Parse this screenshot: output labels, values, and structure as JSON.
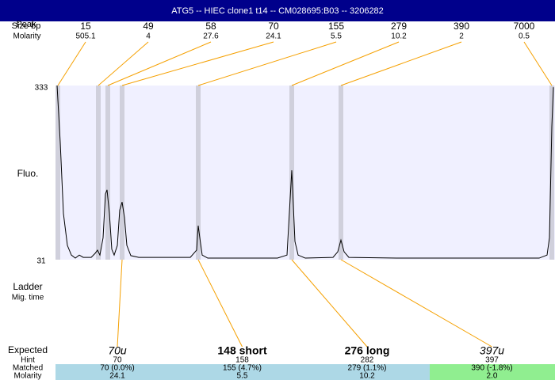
{
  "header": {
    "title": "ATG5 -- HIEC clone1 t14 -- CM028695:B03 -- 3206282"
  },
  "top": {
    "size_label": "Size bp",
    "peak_label": "Peak",
    "molarity_label": "Molarity",
    "peaks": [
      {
        "size": 15,
        "molarity": 505.1
      },
      {
        "size": 49,
        "molarity": 4
      },
      {
        "size": 58,
        "molarity": 27.6
      },
      {
        "size": 70,
        "molarity": 24.1
      },
      {
        "size": 155,
        "molarity": 5.5
      },
      {
        "size": 279,
        "molarity": 10.2
      },
      {
        "size": 390,
        "molarity": 2
      },
      {
        "size": 7000,
        "molarity": 0.5
      }
    ]
  },
  "chart_data": {
    "type": "line",
    "y_label": "Fluo.",
    "ylim": [
      31,
      333
    ],
    "yticks": [
      31,
      333
    ],
    "xlim": [
      0,
      630
    ],
    "peak_x": [
      3,
      54,
      66,
      84,
      180,
      298,
      360,
      626
    ],
    "series": [
      {
        "color": "#000000",
        "x": [
          2,
          6,
          10,
          15,
          20,
          25,
          30,
          35,
          45,
          50,
          53,
          56,
          60,
          63,
          65,
          68,
          71,
          74,
          78,
          81,
          84,
          87,
          90,
          95,
          105,
          130,
          170,
          178,
          180,
          182,
          185,
          192,
          230,
          280,
          292,
          296,
          298,
          300,
          302,
          306,
          315,
          350,
          356,
          360,
          364,
          370,
          430,
          530,
          610,
          620,
          623,
          626,
          628
        ],
        "values": [
          333,
          234,
          111,
          55.7,
          39,
          33.7,
          39,
          35,
          35,
          42,
          47.5,
          39,
          69,
          145,
          152,
          111,
          49,
          39,
          55.7,
          117,
          131,
          104,
          55.7,
          38,
          35,
          35,
          35,
          47.5,
          90,
          69,
          39,
          33.7,
          33.7,
          33.7,
          39,
          138,
          186,
          124,
          62.6,
          39,
          33.7,
          35,
          44.7,
          65,
          44.7,
          35,
          33.7,
          33.7,
          33.7,
          39,
          69,
          261.6,
          330
        ]
      }
    ]
  },
  "bottom": {
    "ladder_label": "Ladder",
    "mig_label": "Mig. time",
    "row_labels": [
      "Expected",
      "Hint",
      "Matched",
      "Molarity"
    ],
    "columns": [
      {
        "expected": "70u",
        "hint": "70",
        "matched": "70 (0.0%)",
        "molarity": "24.1"
      },
      {
        "expected": "148 short",
        "hint": "158",
        "matched": "155 (4.7%)",
        "molarity": "5.5"
      },
      {
        "expected": "276 long",
        "hint": "282",
        "matched": "279 (1.1%)",
        "molarity": "10.2"
      },
      {
        "expected": "397u",
        "hint": "397",
        "matched": "390 (-1.8%)",
        "molarity": "2.0"
      }
    ]
  }
}
